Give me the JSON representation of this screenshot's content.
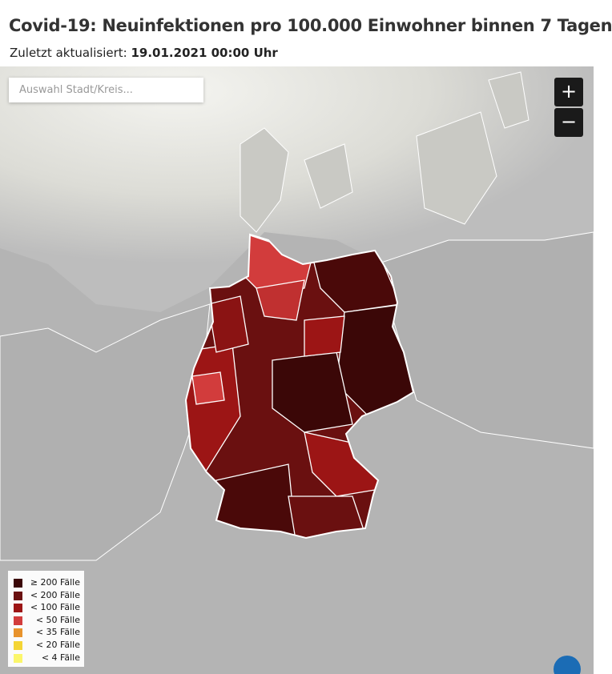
{
  "header": {
    "title": "Covid-19: Neuinfektionen pro 100.000 Einwohner binnen 7 Tagen",
    "updated_label": "Zuletzt aktualisiert:",
    "updated_value": "19.01.2021 00:00 Uhr"
  },
  "search": {
    "placeholder": "Auswahl Stadt/Kreis..."
  },
  "zoom": {
    "in": "+",
    "out": "−"
  },
  "legend": [
    {
      "label": "≥ 200 Fälle",
      "color": "#3b0707"
    },
    {
      "label": "< 200 Fälle",
      "color": "#6a1010"
    },
    {
      "label": "< 100 Fälle",
      "color": "#9c1515"
    },
    {
      "label": "< 50 Fälle",
      "color": "#d23c3c"
    },
    {
      "label": "< 35 Fälle",
      "color": "#e8932c"
    },
    {
      "label": "< 20 Fälle",
      "color": "#f4d535"
    },
    {
      "label": "< 4 Fälle",
      "color": "#fbf66b"
    }
  ]
}
